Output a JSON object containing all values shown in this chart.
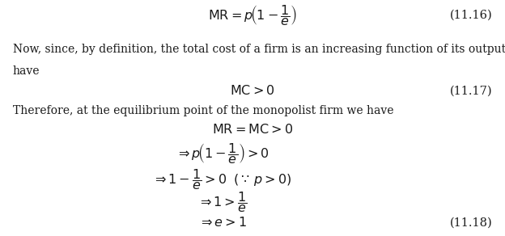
{
  "bg_color": "#ffffff",
  "text_color": "#1a1a1a",
  "fig_width": 6.24,
  "fig_height": 2.92,
  "dpi": 100,
  "lines": [
    {
      "type": "math",
      "xf": 0.5,
      "yf": 0.935,
      "text": "$\\mathrm{MR} = p\\!\\left(1-\\dfrac{1}{e}\\right)$",
      "ha": "center",
      "fontsize": 11.5
    },
    {
      "type": "tag",
      "xf": 0.975,
      "yf": 0.935,
      "text": "(11.16)",
      "ha": "right",
      "fontsize": 10.5
    },
    {
      "type": "body",
      "xf": 0.025,
      "yf": 0.79,
      "text": "Now, since, by definition, the total cost of a firm is an increasing function of its output, we",
      "ha": "left",
      "fontsize": 10
    },
    {
      "type": "body",
      "xf": 0.025,
      "yf": 0.7,
      "text": "have",
      "ha": "left",
      "fontsize": 10
    },
    {
      "type": "math",
      "xf": 0.5,
      "yf": 0.615,
      "text": "$\\mathrm{MC} > 0$",
      "ha": "center",
      "fontsize": 11.5
    },
    {
      "type": "tag",
      "xf": 0.975,
      "yf": 0.615,
      "text": "(11.17)",
      "ha": "right",
      "fontsize": 10.5
    },
    {
      "type": "body",
      "xf": 0.025,
      "yf": 0.53,
      "text": "Therefore, at the equilibrium point of the monopolist firm we have",
      "ha": "left",
      "fontsize": 10
    },
    {
      "type": "math",
      "xf": 0.5,
      "yf": 0.45,
      "text": "$\\mathrm{MR} = \\mathrm{MC} > 0$",
      "ha": "center",
      "fontsize": 11.5
    },
    {
      "type": "math",
      "xf": 0.44,
      "yf": 0.35,
      "text": "$\\Rightarrow p\\!\\left(1-\\dfrac{1}{e}\\right)>0$",
      "ha": "center",
      "fontsize": 11.5
    },
    {
      "type": "math",
      "xf": 0.44,
      "yf": 0.24,
      "text": "$\\Rightarrow 1-\\dfrac{1}{e}>0\\;\\;(\\because\\, p>0)$",
      "ha": "center",
      "fontsize": 11.5
    },
    {
      "type": "math",
      "xf": 0.44,
      "yf": 0.145,
      "text": "$\\Rightarrow 1 > \\dfrac{1}{e}$",
      "ha": "center",
      "fontsize": 11.5
    },
    {
      "type": "math",
      "xf": 0.44,
      "yf": 0.055,
      "text": "$\\Rightarrow e > 1$",
      "ha": "center",
      "fontsize": 11.5
    },
    {
      "type": "tag",
      "xf": 0.975,
      "yf": 0.055,
      "text": "(11.18)",
      "ha": "right",
      "fontsize": 10.5
    }
  ]
}
